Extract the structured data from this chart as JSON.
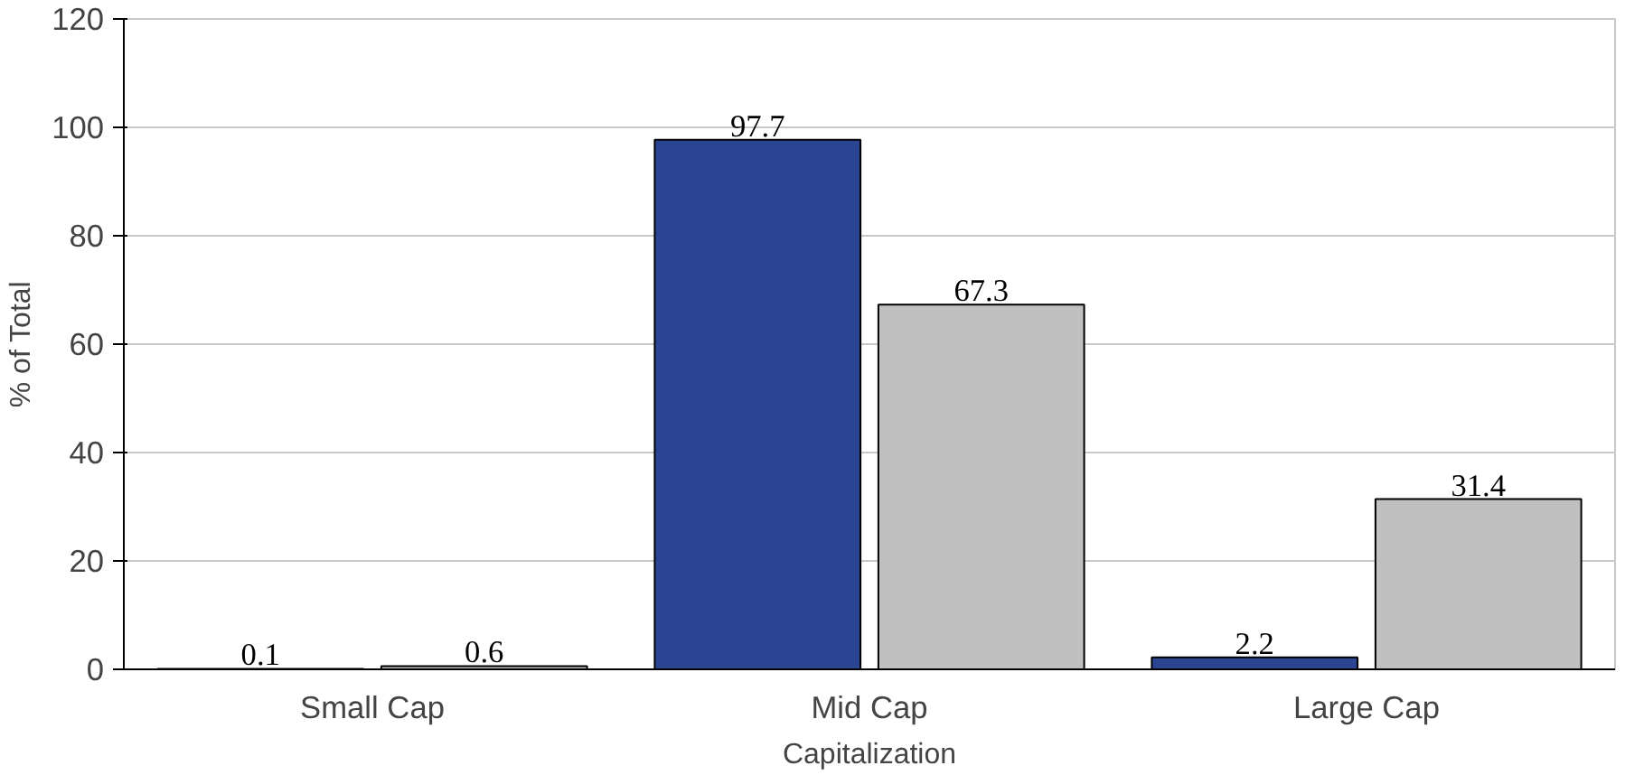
{
  "chart_data": {
    "type": "bar",
    "categories": [
      "Small Cap",
      "Mid Cap",
      "Large Cap"
    ],
    "xlabel": "Capitalization",
    "ylabel": "% of Total",
    "ylim": [
      0,
      120
    ],
    "yticks": [
      0,
      20,
      40,
      60,
      80,
      100,
      120
    ],
    "grid": "y",
    "data_labels": true,
    "series": [
      {
        "color": "#2b4592",
        "values": [
          0.1,
          97.7,
          2.2
        ]
      },
      {
        "color": "#c0c0c0",
        "values": [
          0.6,
          67.3,
          31.4
        ]
      }
    ]
  }
}
